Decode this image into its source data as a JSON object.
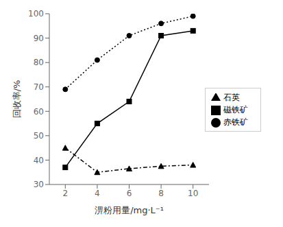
{
  "chart_data": {
    "type": "line",
    "xlabel": "淠粉用量/mg·L⁻¹",
    "ylabel": "回收率/%",
    "x": [
      2,
      4,
      6,
      8,
      10
    ],
    "series": [
      {
        "name": "磁铁矿",
        "color": "#000000",
        "values": [
          37,
          55,
          64,
          91,
          93
        ],
        "marker": "square",
        "line_style": "solid"
      },
      {
        "name": "赤铁矿",
        "color": "#000000",
        "values": [
          69,
          81,
          91,
          96,
          99
        ],
        "marker": "circle",
        "line_style": "dotted"
      },
      {
        "name": "石英",
        "color": "#000000",
        "values": [
          45,
          35,
          36.5,
          37.5,
          38
        ],
        "marker": "triangle",
        "line_style": "dashdot"
      }
    ],
    "xlim": [
      1,
      11
    ],
    "ylim": [
      30,
      100
    ],
    "xticks": [
      2,
      4,
      6,
      8,
      10
    ],
    "yticks": [
      30,
      40,
      50,
      60,
      70,
      80,
      90,
      100
    ],
    "grid": false,
    "legend": "right"
  }
}
